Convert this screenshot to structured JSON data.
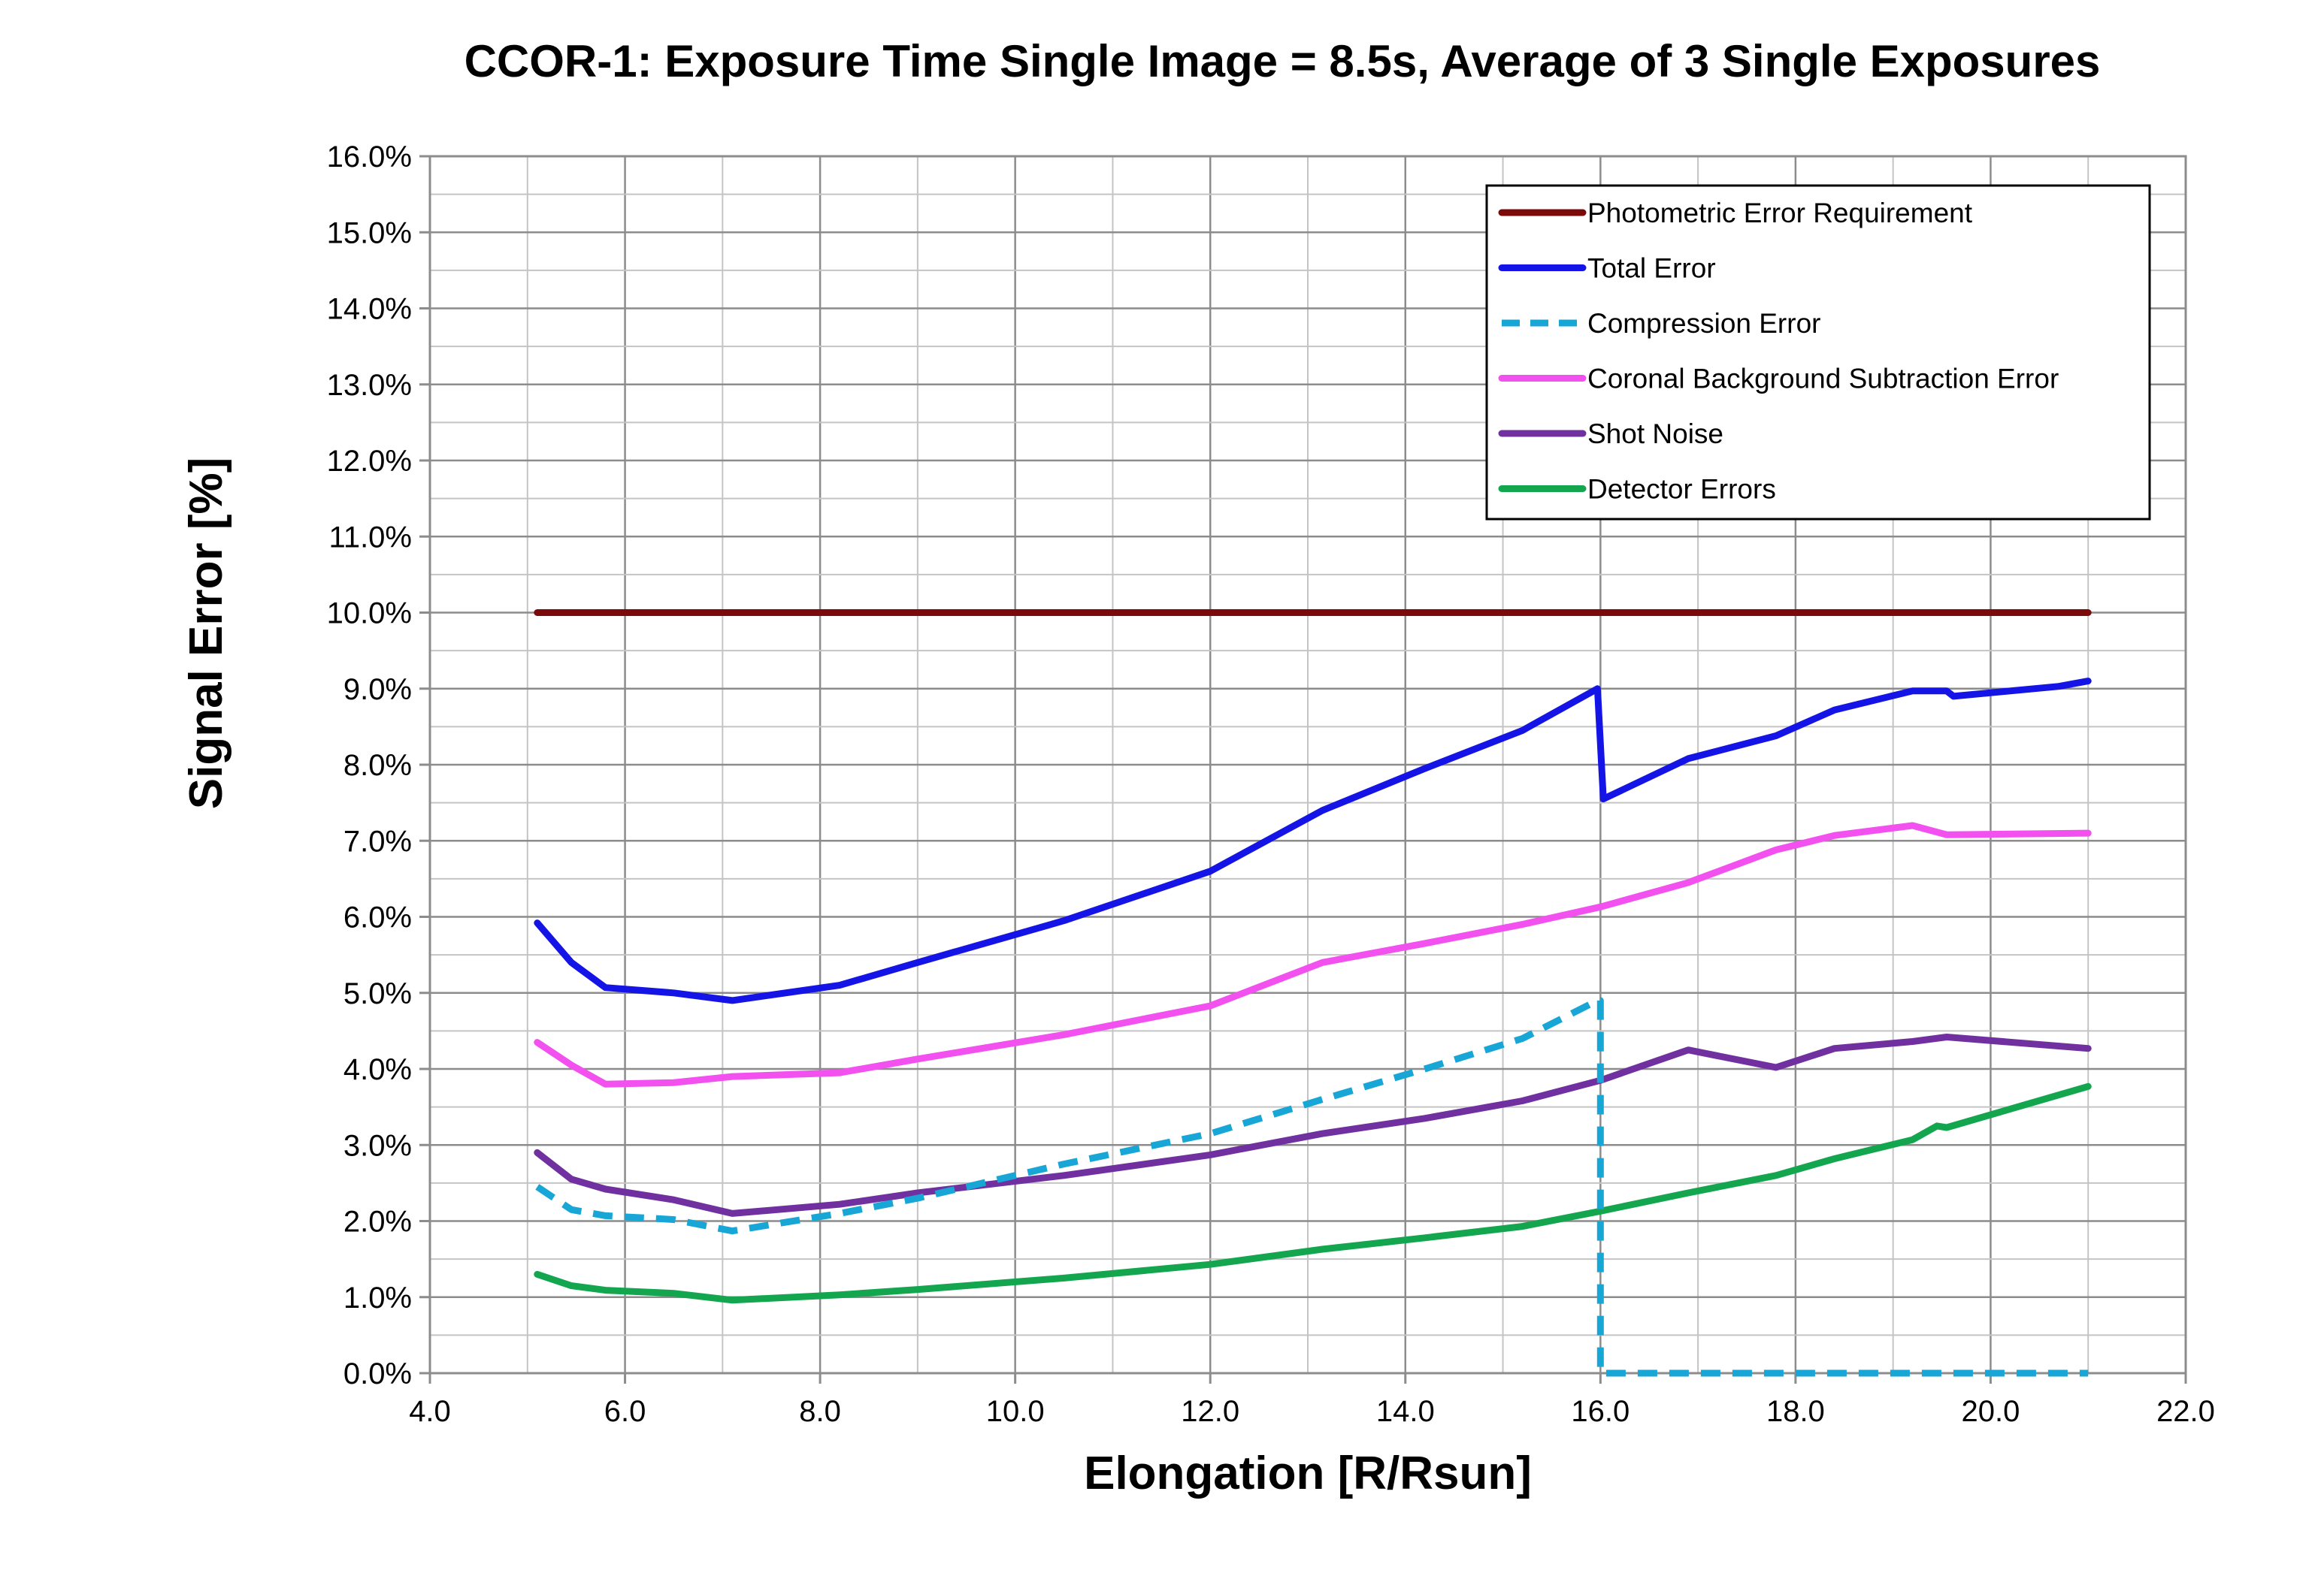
{
  "chart_data": {
    "type": "line",
    "title": "CCOR-1: Exposure Time Single Image = 8.5s, Average of 3 Single Exposures",
    "xlabel": "Elongation [R/Rsun]",
    "ylabel": "Signal Error [%]",
    "xlim": [
      4.0,
      22.0
    ],
    "ylim": [
      0.0,
      16.0
    ],
    "x_ticks": [
      "4.0",
      "6.0",
      "8.0",
      "10.0",
      "12.0",
      "14.0",
      "16.0",
      "18.0",
      "20.0",
      "22.0"
    ],
    "y_ticks": [
      "0.0%",
      "1.0%",
      "2.0%",
      "3.0%",
      "4.0%",
      "5.0%",
      "6.0%",
      "7.0%",
      "8.0%",
      "9.0%",
      "10.0%",
      "11.0%",
      "12.0%",
      "13.0%",
      "14.0%",
      "15.0%",
      "16.0%"
    ],
    "legend_position": "top-right",
    "series": [
      {
        "name": "Photometric Error Requirement",
        "color": "#7b0a0a",
        "dashed": false,
        "x": [
          5.1,
          21.0
        ],
        "y": [
          10.0,
          10.0
        ]
      },
      {
        "name": "Total Error",
        "color": "#1414e6",
        "dashed": false,
        "x": [
          5.1,
          5.45,
          5.8,
          6.5,
          7.1,
          8.2,
          9.0,
          10.5,
          12.0,
          13.15,
          14.2,
          15.2,
          15.97,
          16.03,
          16.9,
          17.8,
          18.4,
          19.2,
          19.55,
          19.62,
          20.7,
          21.0
        ],
        "y": [
          5.92,
          5.4,
          5.07,
          5.0,
          4.9,
          5.1,
          5.4,
          5.95,
          6.6,
          7.4,
          7.95,
          8.45,
          9.0,
          7.55,
          8.08,
          8.38,
          8.72,
          8.97,
          8.97,
          8.9,
          9.03,
          9.1
        ]
      },
      {
        "name": "Compression Error",
        "color": "#17a6d6",
        "dashed": true,
        "x": [
          5.1,
          5.45,
          5.8,
          6.5,
          7.1,
          8.2,
          9.0,
          10.5,
          12.0,
          13.15,
          14.2,
          15.2,
          15.97,
          16.0,
          16.0,
          21.0
        ],
        "y": [
          2.45,
          2.15,
          2.07,
          2.02,
          1.87,
          2.1,
          2.3,
          2.75,
          3.15,
          3.6,
          4.0,
          4.4,
          4.9,
          4.9,
          0.0,
          0.0
        ]
      },
      {
        "name": "Coronal Background Subtraction Error",
        "color": "#f251ef",
        "dashed": false,
        "x": [
          5.1,
          5.45,
          5.8,
          6.5,
          7.1,
          8.2,
          9.0,
          10.5,
          12.0,
          13.15,
          14.2,
          15.2,
          16.0,
          16.9,
          17.8,
          18.4,
          19.2,
          19.55,
          21.0
        ],
        "y": [
          4.35,
          4.05,
          3.8,
          3.82,
          3.9,
          3.95,
          4.13,
          4.45,
          4.83,
          5.4,
          5.65,
          5.9,
          6.13,
          6.45,
          6.88,
          7.07,
          7.2,
          7.08,
          7.1
        ]
      },
      {
        "name": "Shot Noise",
        "color": "#7030a0",
        "dashed": false,
        "x": [
          5.1,
          5.45,
          5.8,
          6.5,
          7.1,
          8.2,
          9.0,
          10.5,
          12.0,
          13.15,
          14.2,
          15.2,
          16.0,
          16.9,
          17.8,
          18.4,
          19.2,
          19.55,
          21.0
        ],
        "y": [
          2.9,
          2.55,
          2.42,
          2.28,
          2.1,
          2.22,
          2.37,
          2.6,
          2.87,
          3.15,
          3.35,
          3.58,
          3.85,
          4.25,
          4.02,
          4.27,
          4.36,
          4.42,
          4.27
        ]
      },
      {
        "name": "Detector Errors",
        "color": "#13a64e",
        "dashed": false,
        "x": [
          5.1,
          5.45,
          5.8,
          6.5,
          7.1,
          8.2,
          9.0,
          10.5,
          12.0,
          13.15,
          14.2,
          15.2,
          16.0,
          16.9,
          17.8,
          18.4,
          19.2,
          19.45,
          19.55,
          21.0
        ],
        "y": [
          1.3,
          1.15,
          1.09,
          1.05,
          0.96,
          1.03,
          1.1,
          1.25,
          1.43,
          1.63,
          1.78,
          1.93,
          2.13,
          2.37,
          2.6,
          2.82,
          3.07,
          3.25,
          3.23,
          3.77
        ]
      }
    ]
  }
}
